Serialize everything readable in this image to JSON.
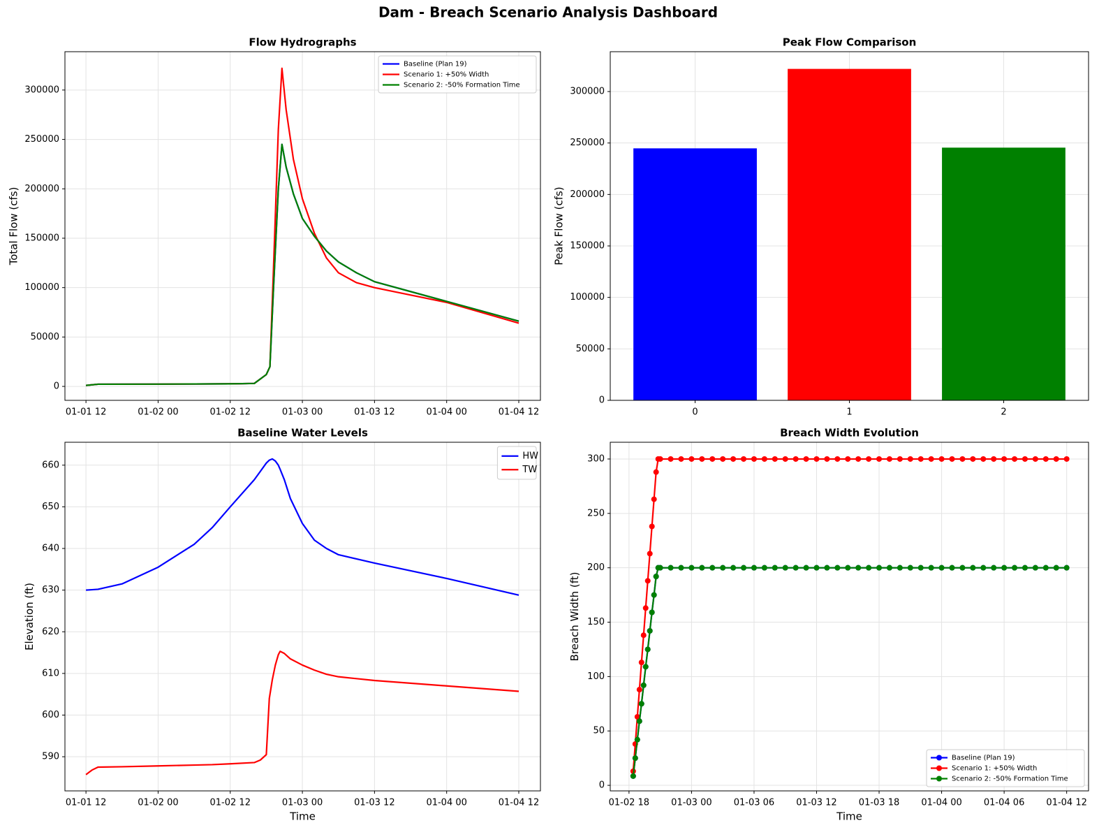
{
  "title": "Dam - Breach Scenario Analysis Dashboard",
  "chart_data": [
    {
      "type": "line",
      "title": "Flow Hydrographs",
      "y_label": "Total Flow (cfs)",
      "grid": true,
      "legend": "upper right",
      "x": [
        12,
        14,
        24,
        36,
        40,
        42,
        42.6,
        43.2,
        44,
        44.6,
        45.3,
        46.5,
        48,
        50,
        52,
        54,
        57,
        60,
        72,
        84
      ],
      "xlim": [
        8.5,
        87.6
      ],
      "xticks": [
        {
          "value": 12,
          "label": "01-01 12"
        },
        {
          "value": 24,
          "label": "01-02 00"
        },
        {
          "value": 36,
          "label": "01-02 12"
        },
        {
          "value": 48,
          "label": "01-03 00"
        },
        {
          "value": 60,
          "label": "01-03 12"
        },
        {
          "value": 72,
          "label": "01-04 00"
        },
        {
          "value": 84,
          "label": "01-04 12"
        }
      ],
      "ylim": [
        -14100,
        338800
      ],
      "yticks": [
        0,
        50000,
        100000,
        150000,
        200000,
        250000,
        300000
      ],
      "series": [
        {
          "name": "Baseline (Plan 19)",
          "color": "#0000ff",
          "values": [
            1000,
            2200,
            2300,
            2600,
            3000,
            12000,
            20000,
            100000,
            200000,
            245000,
            222000,
            195000,
            170000,
            152000,
            137000,
            126000,
            115000,
            106000,
            86000,
            66000
          ]
        },
        {
          "name": "Scenario 1: +50% Width",
          "color": "#ff0000",
          "values": [
            1000,
            2200,
            2300,
            2600,
            3000,
            12000,
            20000,
            120000,
            260000,
            322000,
            280000,
            230000,
            190000,
            155000,
            130000,
            115000,
            105000,
            100000,
            85000,
            64000
          ]
        },
        {
          "name": "Scenario 2: -50% Formation Time",
          "color": "#008000",
          "values": [
            1000,
            2200,
            2300,
            2600,
            3000,
            12000,
            20000,
            100000,
            200000,
            245000,
            222000,
            195000,
            170000,
            152000,
            137000,
            126000,
            115000,
            106000,
            86000,
            66000
          ]
        }
      ]
    },
    {
      "type": "bar",
      "title": "Peak Flow Comparison",
      "y_label": "Peak Flow (cfs)",
      "grid": true,
      "x": [
        0,
        1,
        2
      ],
      "xlim": [
        -0.55,
        2.55
      ],
      "xticks": [
        0,
        1,
        2
      ],
      "values": [
        244800,
        322000,
        245500
      ],
      "colors": [
        "#0000ff",
        "#ff0000",
        "#008000"
      ],
      "ylim": [
        0,
        338700
      ],
      "yticks": [
        0,
        50000,
        100000,
        150000,
        200000,
        250000,
        300000
      ]
    },
    {
      "type": "line",
      "title": "Baseline Water Levels",
      "x_label": "Time",
      "y_label": "Elevation (ft)",
      "grid": true,
      "legend": "upper right",
      "x": [
        12,
        13,
        14,
        18,
        24,
        30,
        33,
        36,
        40,
        41,
        42,
        42.5,
        43,
        43.5,
        44,
        44.3,
        45,
        46,
        48,
        50,
        52,
        54,
        60,
        72,
        84
      ],
      "xlim": [
        8.5,
        87.6
      ],
      "xticks": [
        {
          "value": 12,
          "label": "01-01 12"
        },
        {
          "value": 24,
          "label": "01-02 00"
        },
        {
          "value": 36,
          "label": "01-02 12"
        },
        {
          "value": 48,
          "label": "01-03 00"
        },
        {
          "value": 60,
          "label": "01-03 12"
        },
        {
          "value": 72,
          "label": "01-04 00"
        },
        {
          "value": 84,
          "label": "01-04 12"
        }
      ],
      "ylim": [
        581.8,
        665.5
      ],
      "yticks": [
        590,
        600,
        610,
        620,
        630,
        640,
        650,
        660
      ],
      "series": [
        {
          "name": "HW",
          "color": "#0000ff",
          "values": [
            630,
            630.1,
            630.2,
            631.5,
            635.5,
            641,
            645,
            650,
            656.5,
            658.5,
            660.5,
            661.2,
            661.5,
            661,
            660,
            659,
            656.5,
            652,
            646,
            642,
            640,
            638.5,
            636.5,
            632.8,
            628.8
          ]
        },
        {
          "name": "TW",
          "color": "#ff0000",
          "values": [
            585.7,
            586.8,
            587.5,
            587.6,
            587.8,
            588,
            588.1,
            588.3,
            588.6,
            589.2,
            590.5,
            604,
            608.5,
            612,
            614.5,
            615.3,
            614.8,
            613.5,
            612,
            610.8,
            609.8,
            609.2,
            608.3,
            607,
            605.7
          ]
        }
      ]
    },
    {
      "type": "line",
      "markers": true,
      "title": "Breach Width Evolution",
      "x_label": "Time",
      "y_label": "Breach Width (ft)",
      "grid": true,
      "legend": "lower right",
      "x": [
        42.4,
        42.6,
        42.8,
        43,
        43.2,
        43.4,
        43.6,
        43.8,
        44,
        44.2,
        44.4,
        44.6,
        44.8,
        45,
        46,
        47,
        48,
        49,
        50,
        51,
        52,
        53,
        54,
        55,
        56,
        57,
        58,
        59,
        60,
        61,
        62,
        63,
        64,
        65,
        66,
        67,
        68,
        69,
        70,
        71,
        72,
        73,
        74,
        75,
        76,
        77,
        78,
        79,
        80,
        81,
        82,
        83,
        84
      ],
      "xlim": [
        40.2,
        86.1
      ],
      "xticks": [
        {
          "value": 42,
          "label": "01-02 18"
        },
        {
          "value": 48,
          "label": "01-03 00"
        },
        {
          "value": 54,
          "label": "01-03 06"
        },
        {
          "value": 60,
          "label": "01-03 12"
        },
        {
          "value": 66,
          "label": "01-03 18"
        },
        {
          "value": 72,
          "label": "01-04 00"
        },
        {
          "value": 78,
          "label": "01-04 06"
        },
        {
          "value": 84,
          "label": "01-04 12"
        }
      ],
      "ylim": [
        -5.1,
        315.4
      ],
      "yticks": [
        0,
        50,
        100,
        150,
        200,
        250,
        300
      ],
      "series": [
        {
          "name": "Baseline (Plan 19)",
          "color": "#0000ff",
          "values": [
            8.5,
            25,
            42,
            59,
            75,
            92,
            109,
            125,
            142,
            159,
            175,
            192,
            200,
            200,
            200,
            200,
            200,
            200,
            200,
            200,
            200,
            200,
            200,
            200,
            200,
            200,
            200,
            200,
            200,
            200,
            200,
            200,
            200,
            200,
            200,
            200,
            200,
            200,
            200,
            200,
            200,
            200,
            200,
            200,
            200,
            200,
            200,
            200,
            200,
            200,
            200,
            200,
            200
          ]
        },
        {
          "name": "Scenario 1: +50% Width",
          "color": "#ff0000",
          "values": [
            13,
            38,
            63,
            88,
            113,
            138,
            163,
            188,
            213,
            238,
            263,
            288,
            300,
            300,
            300,
            300,
            300,
            300,
            300,
            300,
            300,
            300,
            300,
            300,
            300,
            300,
            300,
            300,
            300,
            300,
            300,
            300,
            300,
            300,
            300,
            300,
            300,
            300,
            300,
            300,
            300,
            300,
            300,
            300,
            300,
            300,
            300,
            300,
            300,
            300,
            300,
            300,
            300
          ]
        },
        {
          "name": "Scenario 2: -50% Formation Time",
          "color": "#008000",
          "values": [
            8.5,
            25,
            42,
            59,
            75,
            92,
            109,
            125,
            142,
            159,
            175,
            192,
            200,
            200,
            200,
            200,
            200,
            200,
            200,
            200,
            200,
            200,
            200,
            200,
            200,
            200,
            200,
            200,
            200,
            200,
            200,
            200,
            200,
            200,
            200,
            200,
            200,
            200,
            200,
            200,
            200,
            200,
            200,
            200,
            200,
            200,
            200,
            200,
            200,
            200,
            200,
            200,
            200
          ]
        }
      ]
    }
  ]
}
